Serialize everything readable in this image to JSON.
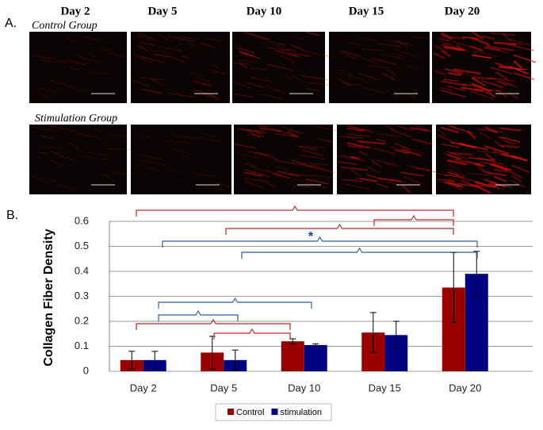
{
  "panel_a": {
    "label": "A.",
    "days": [
      "Day 2",
      "Day 5",
      "Day 10",
      "Day 15",
      "Day 20"
    ],
    "groups": [
      "Control Group",
      "Stimulation Group"
    ]
  },
  "panel_b_label": "B.",
  "chart_data": {
    "type": "bar",
    "y_label": "Collagen Fiber Density",
    "categories": [
      "Day 2",
      "Day 5",
      "Day 10",
      "Day 15",
      "Day 20"
    ],
    "series": [
      {
        "name": "Control",
        "color": "#990000",
        "values": [
          0.045,
          0.075,
          0.12,
          0.155,
          0.335
        ],
        "errors": [
          0.035,
          0.065,
          0.01,
          0.08,
          0.14
        ]
      },
      {
        "name": "stimulation",
        "color": "#000080",
        "values": [
          0.045,
          0.045,
          0.105,
          0.145,
          0.39
        ],
        "errors": [
          0.035,
          0.04,
          0.005,
          0.055,
          0.09
        ]
      }
    ],
    "ylim": [
      0,
      0.6
    ],
    "yticks": [
      0,
      0.1,
      0.2,
      0.3,
      0.4,
      0.5,
      0.6
    ],
    "grid": true,
    "annotation": "*",
    "legend": "bottom"
  }
}
